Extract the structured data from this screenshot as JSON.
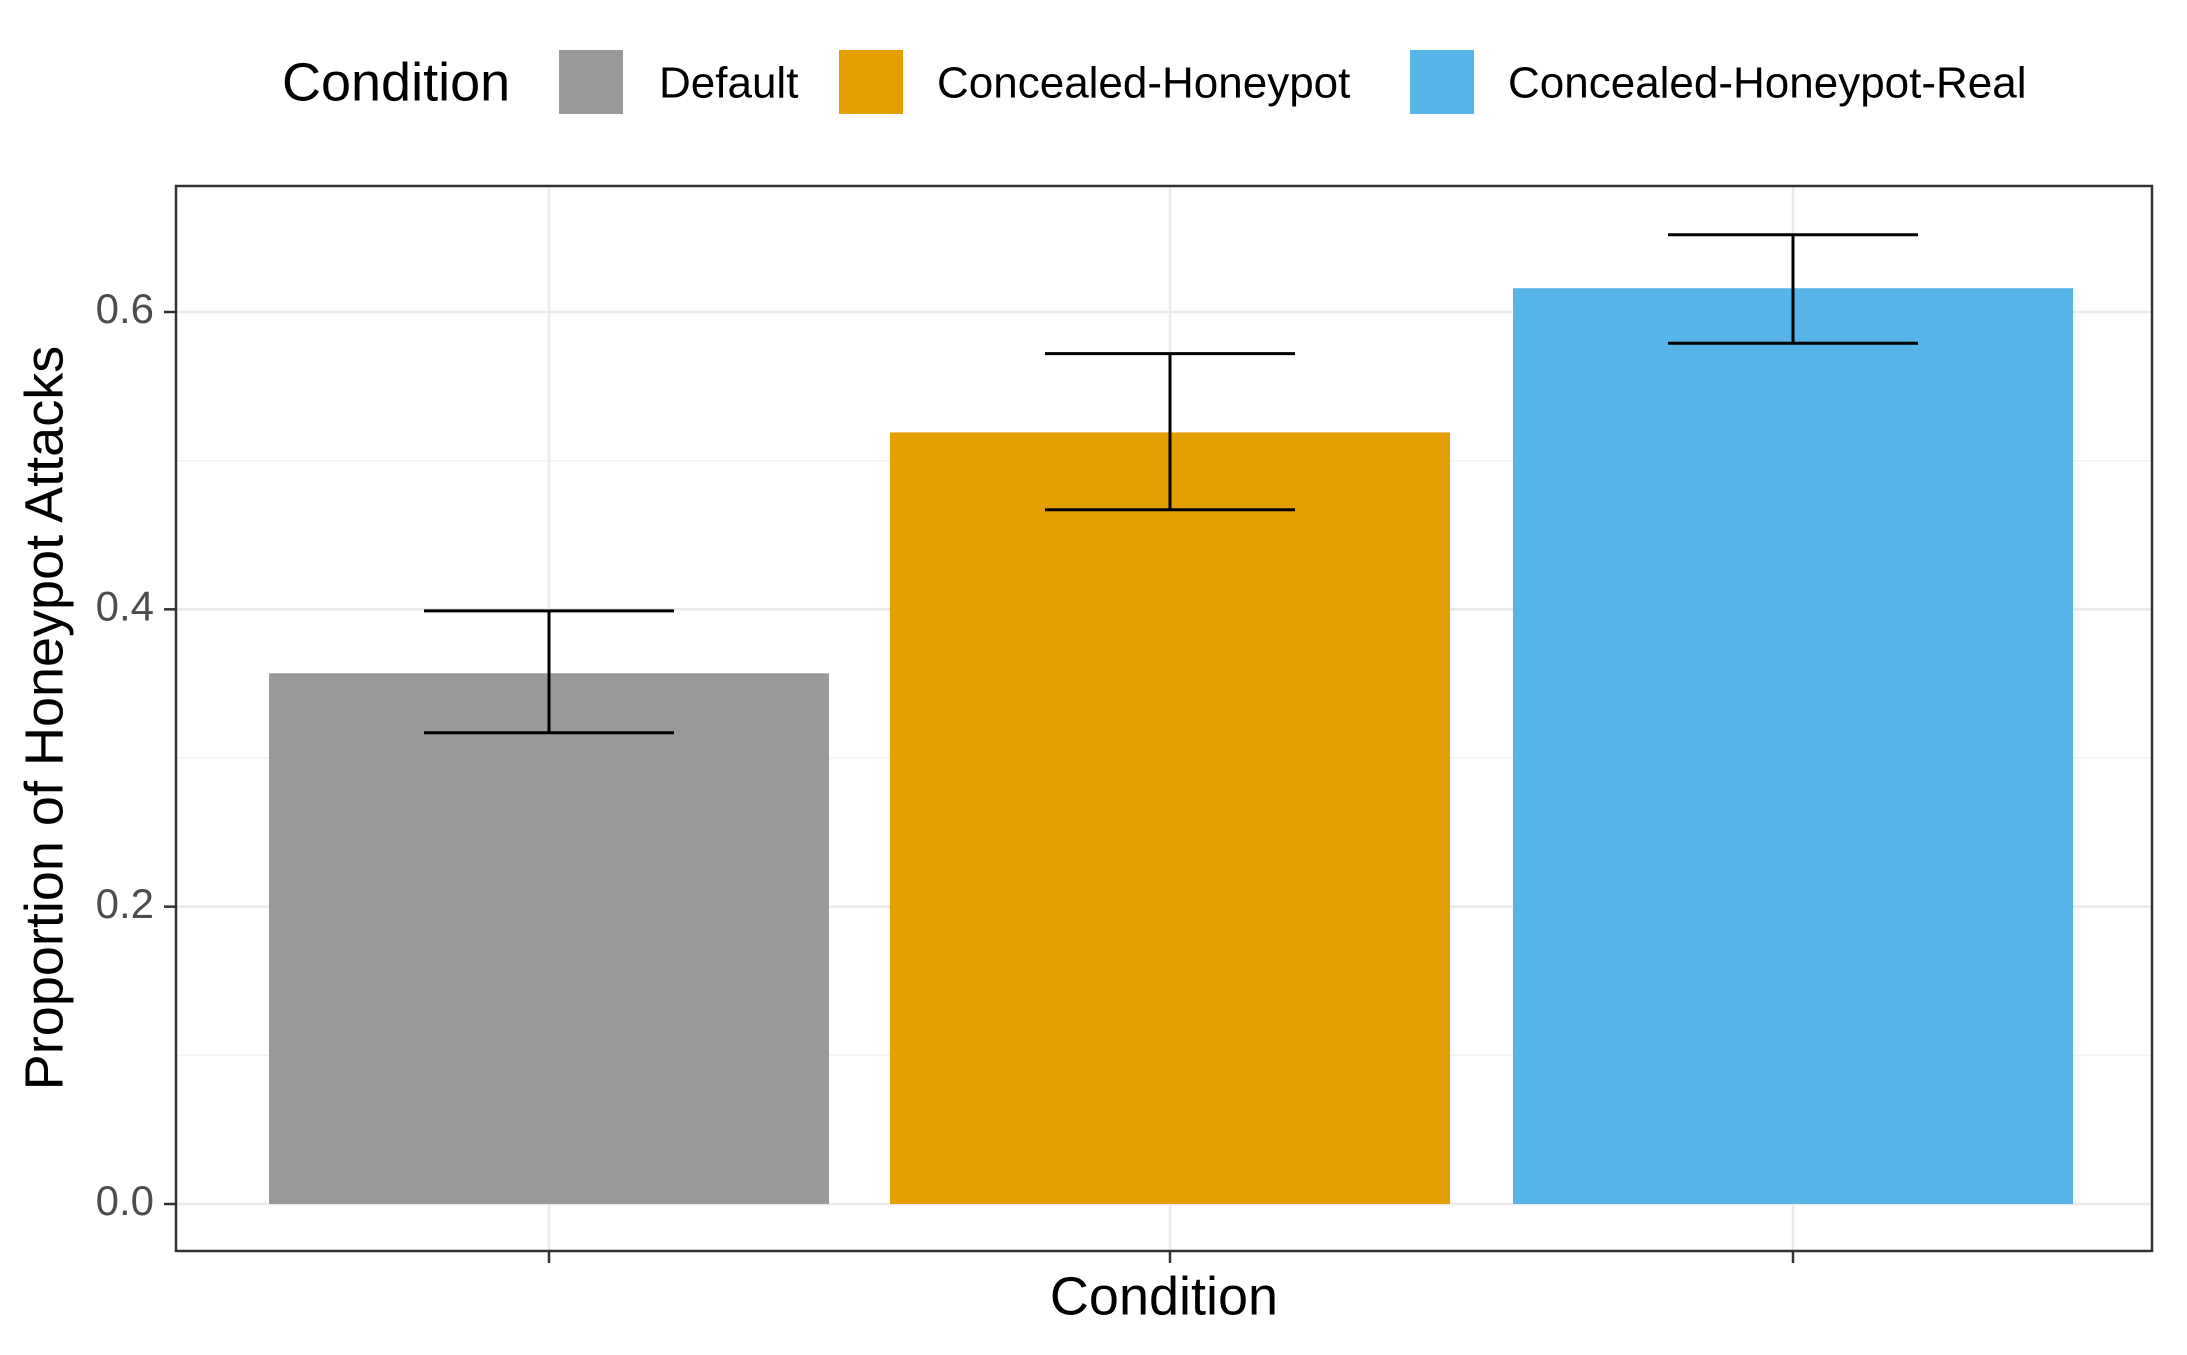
{
  "chart_data": {
    "type": "bar",
    "title": "",
    "xlabel": "Condition",
    "ylabel": "Proportion of Honeypot Attacks",
    "ylim": [
      0,
      0.68
    ],
    "yticks": [
      0.0,
      0.2,
      0.4,
      0.6
    ],
    "ytick_labels": [
      "0.0",
      "0.2",
      "0.4",
      "0.6"
    ],
    "grid": true,
    "legend": {
      "title": "Condition",
      "position": "top",
      "entries": [
        "Default",
        "Concealed-Honeypot",
        "Concealed-Honeypot-Real"
      ]
    },
    "categories": [
      "Default",
      "Concealed-Honeypot",
      "Concealed-Honeypot-Real"
    ],
    "values": [
      0.357,
      0.519,
      0.616
    ],
    "error_low": [
      0.317,
      0.467,
      0.579
    ],
    "error_high": [
      0.399,
      0.572,
      0.652
    ],
    "colors": [
      "#999999",
      "#E69F00",
      "#56B4E9"
    ]
  }
}
